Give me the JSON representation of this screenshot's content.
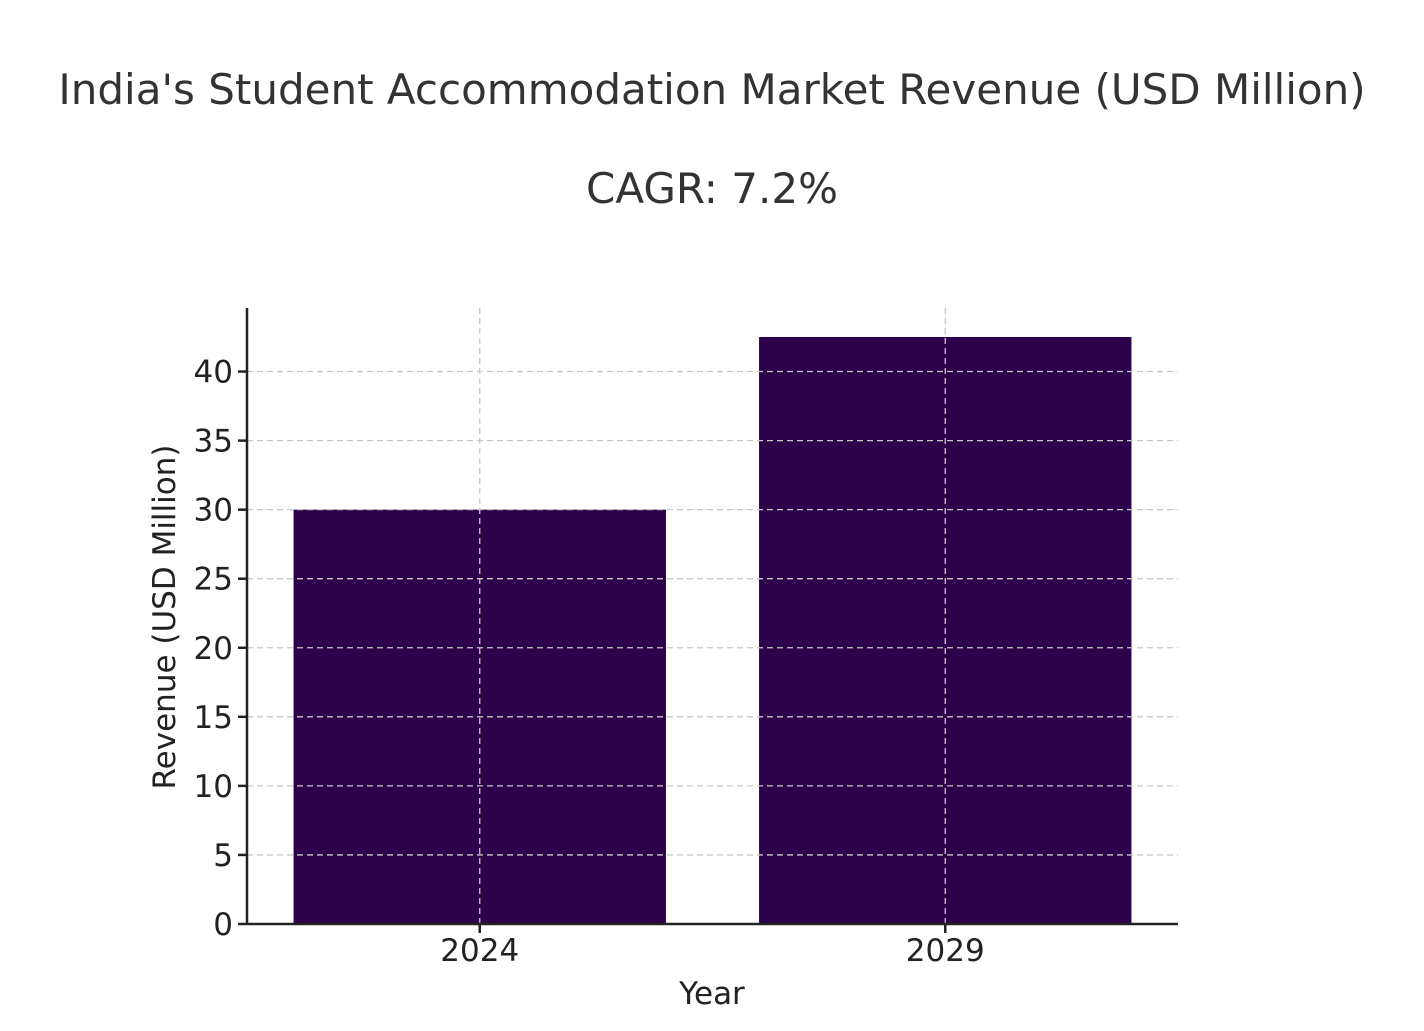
{
  "chart_data": {
    "type": "bar",
    "title": "India's Student Accommodation Market Revenue (USD Million)",
    "subtitle": "CAGR: 7.2%",
    "categories": [
      "2024",
      "2029"
    ],
    "values": [
      30.0,
      42.5
    ],
    "xlabel": "Year",
    "ylabel": "Revenue (USD Million)",
    "ylim": [
      0,
      44.6
    ],
    "yticks": [
      0,
      5,
      10,
      15,
      20,
      25,
      30,
      35,
      40
    ],
    "grid": true,
    "bar_color": "#2d004b"
  }
}
